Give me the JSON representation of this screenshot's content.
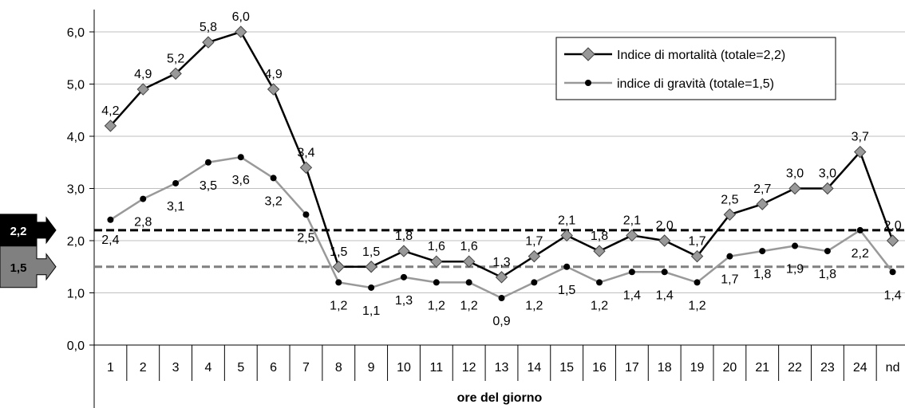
{
  "chart_data": {
    "type": "line",
    "xlabel": "ore del giorno",
    "ylabel": "",
    "ylim": [
      0,
      6
    ],
    "yticks": [
      "0,0",
      "1,0",
      "2,0",
      "3,0",
      "4,0",
      "5,0",
      "6,0"
    ],
    "categories": [
      "1",
      "2",
      "3",
      "4",
      "5",
      "6",
      "7",
      "8",
      "9",
      "10",
      "11",
      "12",
      "13",
      "14",
      "15",
      "16",
      "17",
      "18",
      "19",
      "20",
      "21",
      "22",
      "23",
      "24",
      "nd"
    ],
    "grid": "horizontal",
    "legend_position": "top-right",
    "series": [
      {
        "name": "Indice di mortalità (totale=2,2)",
        "color": "#000000",
        "marker": "diamond",
        "marker_color": "#999999",
        "values": [
          4.2,
          4.9,
          5.2,
          5.8,
          6.0,
          4.9,
          3.4,
          1.5,
          1.5,
          1.8,
          1.6,
          1.6,
          1.3,
          1.7,
          2.1,
          1.8,
          2.1,
          2.0,
          1.7,
          2.5,
          2.7,
          3.0,
          3.0,
          3.7,
          2.0
        ],
        "labels": [
          "4,2",
          "4,9",
          "5,2",
          "5,8",
          "6,0",
          "4,9",
          "3,4",
          "1,5",
          "1,5",
          "1,8",
          "1,6",
          "1,6",
          "1,3",
          "1,7",
          "2,1",
          "1,8",
          "2,1",
          "2,0",
          "1,7",
          "2,5",
          "2,7",
          "3,0",
          "3,0",
          "3,7",
          "2,0"
        ]
      },
      {
        "name": "indice di gravità (totale=1,5)",
        "color": "#999999",
        "marker": "circle",
        "marker_color": "#000000",
        "values": [
          2.4,
          2.8,
          3.1,
          3.5,
          3.6,
          3.2,
          2.5,
          1.2,
          1.1,
          1.3,
          1.2,
          1.2,
          0.9,
          1.2,
          1.5,
          1.2,
          1.4,
          1.4,
          1.2,
          1.7,
          1.8,
          1.9,
          1.8,
          2.2,
          1.4
        ],
        "labels": [
          "2,4",
          "2,8",
          "3,1",
          "3,5",
          "3,6",
          "3,2",
          "2,5",
          "1,2",
          "1,1",
          "1,3",
          "1,2",
          "1,2",
          "0,9",
          "1,2",
          "1,5",
          "1,2",
          "1,4",
          "1,4",
          "1,2",
          "1,7",
          "1,8",
          "1,9",
          "1,8",
          "2,2",
          "1,4"
        ]
      }
    ],
    "reference_lines": [
      {
        "value": 2.2,
        "label": "2,2",
        "color": "#000000",
        "style": "dashed"
      },
      {
        "value": 1.5,
        "label": "1,5",
        "color": "#808080",
        "style": "dashed"
      }
    ]
  }
}
